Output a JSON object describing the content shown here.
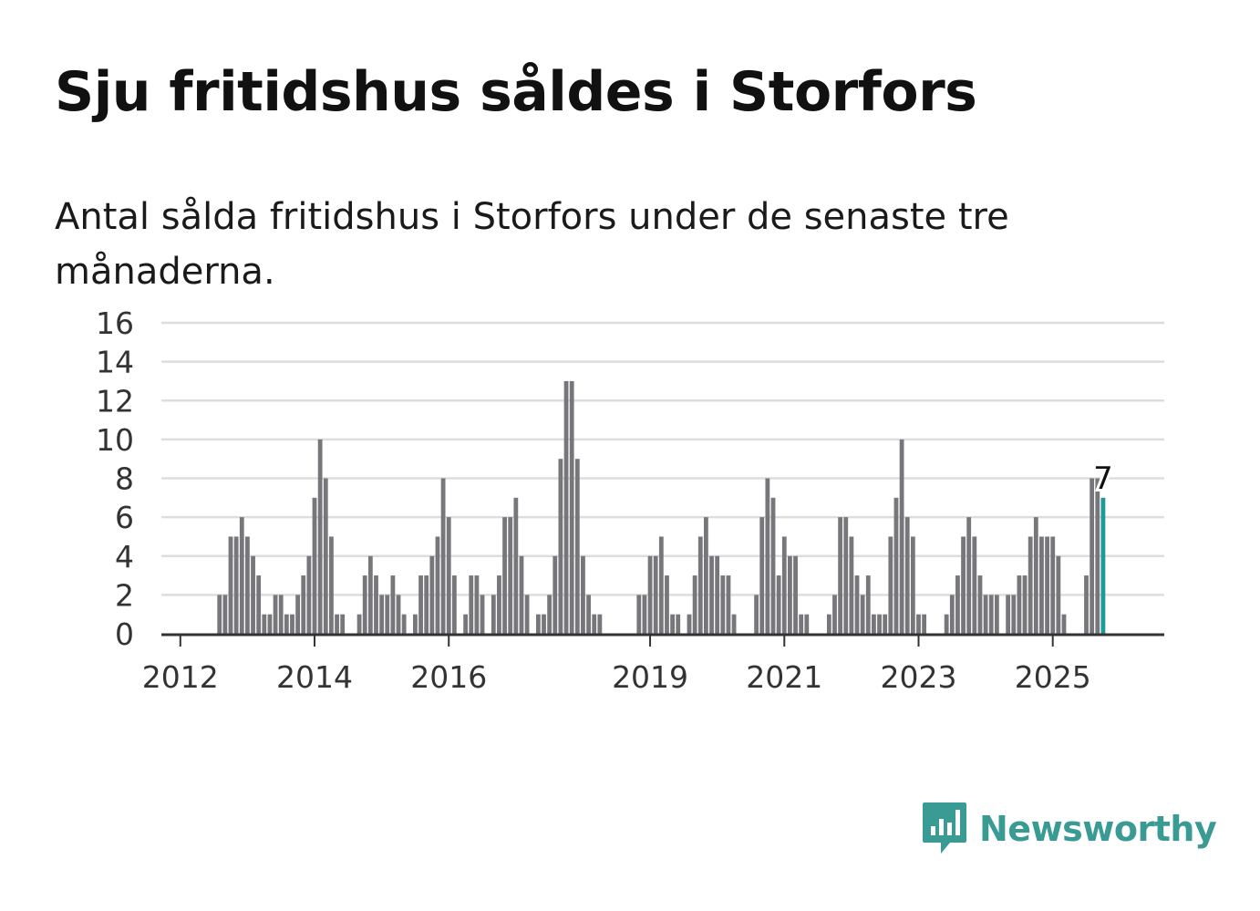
{
  "title": "Sju fritidshus såldes i Storfors",
  "subtitle": "Antal sålda fritidshus i Storfors under de senaste tre månaderna.",
  "brand": {
    "name": "Newsworthy",
    "color": "#3a9a94"
  },
  "colors": {
    "bar": "#77767b",
    "highlight": "#1f9a96",
    "grid": "#dddddd",
    "axis": "#333333"
  },
  "chart_data": {
    "type": "bar",
    "title": "Sju fritidshus såldes i Storfors",
    "subtitle": "Antal sålda fritidshus i Storfors under de senaste tre månaderna.",
    "xlabel": "",
    "ylabel": "",
    "ylim": [
      0,
      16
    ],
    "y_ticks": [
      "0",
      "2",
      "4",
      "6",
      "8",
      "10",
      "12",
      "14",
      "16"
    ],
    "x_tick_labels": [
      {
        "label": "2012",
        "index": 0
      },
      {
        "label": "2014",
        "index": 24
      },
      {
        "label": "2016",
        "index": 48
      },
      {
        "label": "2019",
        "index": 84
      },
      {
        "label": "2021",
        "index": 108
      },
      {
        "label": "2023",
        "index": 132
      },
      {
        "label": "2025",
        "index": 156
      }
    ],
    "grid": true,
    "first_period": "2011-10",
    "period": "month",
    "series": [
      {
        "values": [
          0,
          0,
          0,
          0,
          0,
          0,
          0,
          0,
          0,
          0,
          2,
          2,
          5,
          5,
          6,
          5,
          4,
          3,
          1,
          1,
          2,
          2,
          1,
          1,
          2,
          3,
          4,
          7,
          10,
          8,
          5,
          1,
          1,
          0,
          0,
          1,
          3,
          4,
          3,
          2,
          2,
          3,
          2,
          1,
          0,
          1,
          3,
          3,
          4,
          5,
          8,
          6,
          3,
          0,
          1,
          3,
          3,
          2,
          0,
          2,
          3,
          6,
          6,
          7,
          4,
          2,
          0,
          1,
          1,
          2,
          4,
          9,
          13,
          13,
          9,
          4,
          2,
          1,
          1,
          0,
          0,
          0,
          0,
          0,
          0,
          2,
          2,
          4,
          4,
          5,
          3,
          1,
          1,
          0,
          1,
          3,
          5,
          6,
          4,
          4,
          3,
          3,
          1,
          0,
          0,
          0,
          2,
          6,
          8,
          7,
          3,
          5,
          4,
          4,
          1,
          1,
          0,
          0,
          0,
          1,
          2,
          6,
          6,
          5,
          3,
          2,
          3,
          1,
          1,
          1,
          5,
          7,
          10,
          6,
          5,
          1,
          1,
          0,
          0,
          0,
          1,
          2,
          3,
          5,
          6,
          5,
          3,
          2,
          2,
          2,
          0,
          2,
          2,
          3,
          3,
          5,
          6,
          5,
          5,
          5,
          4,
          1,
          0,
          0,
          0,
          3,
          8,
          8,
          7
        ]
      }
    ],
    "highlight": {
      "index": 168,
      "value": 7,
      "label": "7"
    }
  }
}
